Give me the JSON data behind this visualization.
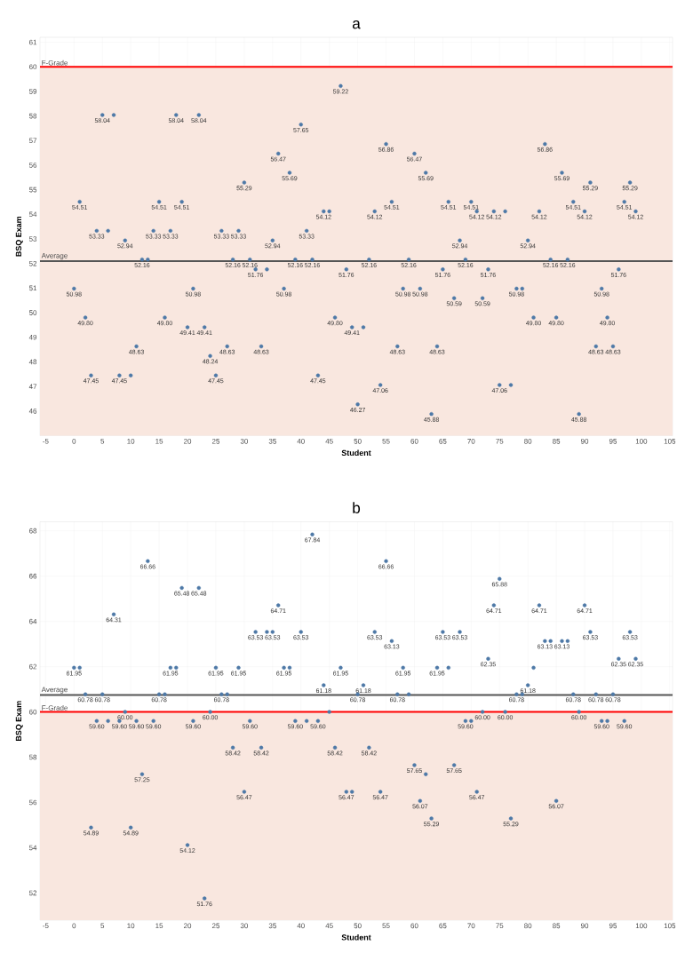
{
  "chart_data": [
    {
      "type": "scatter",
      "title": "a",
      "xlabel": "Student",
      "ylabel": "BSQ Exam",
      "color": "#4e79a7",
      "marker": "circle",
      "grid": true,
      "xlim": [
        -6,
        105.5
      ],
      "xticks": [
        -5,
        0,
        5,
        10,
        15,
        20,
        25,
        30,
        35,
        40,
        45,
        50,
        55,
        60,
        65,
        70,
        75,
        80,
        85,
        90,
        95,
        100,
        105
      ],
      "ylim": [
        45,
        61.2
      ],
      "yticks": [
        46,
        47,
        48,
        49,
        50,
        51,
        52,
        53,
        54,
        55,
        56,
        57,
        58,
        59,
        60,
        61
      ],
      "x": [
        0,
        1,
        2,
        3,
        4,
        5,
        6,
        7,
        8,
        9,
        10,
        11,
        12,
        13,
        14,
        15,
        16,
        17,
        18,
        19,
        20,
        21,
        22,
        23,
        24,
        25,
        26,
        27,
        28,
        29,
        30,
        31,
        32,
        33,
        34,
        35,
        36,
        37,
        38,
        39,
        40,
        41,
        42,
        43,
        44,
        45,
        46,
        47,
        48,
        49,
        50,
        51,
        52,
        53,
        54,
        55,
        56,
        57,
        58,
        59,
        60,
        61,
        62,
        63,
        64,
        65,
        66,
        67,
        68,
        69,
        70,
        71,
        72,
        73,
        74,
        75,
        76,
        77,
        78,
        79,
        80,
        81,
        82,
        83,
        84,
        85,
        86,
        87,
        88,
        89,
        90,
        91,
        92,
        93,
        94,
        95,
        96,
        97,
        98,
        99
      ],
      "values": [
        50.98,
        54.51,
        49.8,
        47.45,
        53.33,
        58.04,
        53.33,
        58.04,
        47.45,
        52.94,
        47.45,
        48.63,
        52.16,
        52.16,
        53.33,
        54.51,
        49.8,
        53.33,
        58.04,
        54.51,
        49.41,
        50.98,
        58.04,
        49.41,
        48.24,
        47.45,
        53.33,
        48.63,
        52.16,
        53.33,
        55.29,
        52.16,
        51.76,
        48.63,
        51.76,
        52.94,
        56.47,
        50.98,
        55.69,
        52.16,
        57.65,
        53.33,
        52.16,
        47.45,
        54.12,
        54.12,
        49.8,
        59.22,
        51.76,
        49.41,
        46.27,
        49.41,
        52.16,
        54.12,
        47.06,
        56.86,
        54.51,
        48.63,
        50.98,
        52.16,
        56.47,
        50.98,
        55.69,
        45.88,
        48.63,
        51.76,
        54.51,
        50.59,
        52.94,
        52.16,
        54.51,
        54.12,
        50.59,
        51.76,
        54.12,
        47.06,
        54.12,
        47.06,
        50.98,
        50.98,
        52.94,
        49.8,
        54.12,
        56.86,
        52.16,
        49.8,
        55.69,
        52.16,
        54.51,
        45.88,
        54.12,
        55.29,
        48.63,
        50.98,
        49.8,
        48.63,
        51.76,
        54.51,
        55.29,
        54.12
      ],
      "value_labels": [
        "50.98",
        "54.51",
        "49.80",
        "47.45",
        "53.33",
        "58.04",
        null,
        null,
        "47.45",
        "52.94",
        null,
        "48.63",
        "52.16",
        null,
        "53.33",
        "54.51",
        "49.80",
        "53.33",
        "58.04",
        "54.51",
        "49.41",
        "50.98",
        "58.04",
        "49.41",
        "48.24",
        "47.45",
        "53.33",
        "48.63",
        "52.16",
        "53.33",
        "55.29",
        "52.16",
        "51.76",
        "48.63",
        null,
        "52.94",
        "56.47",
        "50.98",
        "55.69",
        "52.16",
        "57.65",
        "53.33",
        "52.16",
        "47.45",
        "54.12",
        null,
        "49.80",
        "59.22",
        "51.76",
        "49.41",
        "46.27",
        null,
        "52.16",
        "54.12",
        "47.06",
        "56.86",
        "54.51",
        "48.63",
        "50.98",
        "52.16",
        "56.47",
        "50.98",
        "55.69",
        "45.88",
        "48.63",
        "51.76",
        "54.51",
        "50.59",
        "52.94",
        "52.16",
        "54.51",
        "54.12",
        "50.59",
        "51.76",
        "54.12",
        "47.06",
        null,
        null,
        "50.98",
        null,
        "52.94",
        "49.80",
        "54.12",
        "56.86",
        "52.16",
        "49.80",
        "55.69",
        "52.16",
        "54.51",
        "45.88",
        "54.12",
        "55.29",
        "48.63",
        "50.98",
        "49.80",
        "48.63",
        "51.76",
        "54.51",
        "55.29",
        "54.12"
      ],
      "ref_lines": [
        {
          "axis": "y",
          "value": 60,
          "label": "F-Grade",
          "color": "#ff0000"
        },
        {
          "axis": "y",
          "value": 52.1,
          "label": "Average",
          "color": "#555555"
        }
      ],
      "bands": [
        {
          "axis": "y",
          "from": 45,
          "to": 60,
          "color": "#f9e7df"
        }
      ]
    },
    {
      "type": "scatter",
      "title": "b",
      "xlabel": "Student",
      "ylabel": "BSQ Exam",
      "color": "#4e79a7",
      "marker": "circle",
      "grid": true,
      "xlim": [
        -6,
        105.5
      ],
      "xticks": [
        -5,
        0,
        5,
        10,
        15,
        20,
        25,
        30,
        35,
        40,
        45,
        50,
        55,
        60,
        65,
        70,
        75,
        80,
        85,
        90,
        95,
        100,
        105
      ],
      "ylim": [
        50.8,
        68.4
      ],
      "yticks": [
        52,
        54,
        56,
        58,
        60,
        62,
        64,
        66,
        68
      ],
      "x": [
        0,
        1,
        2,
        3,
        4,
        5,
        6,
        7,
        8,
        9,
        10,
        11,
        12,
        13,
        14,
        15,
        16,
        17,
        18,
        19,
        20,
        21,
        22,
        23,
        24,
        25,
        26,
        27,
        28,
        29,
        30,
        31,
        32,
        33,
        34,
        35,
        36,
        37,
        38,
        39,
        40,
        41,
        42,
        43,
        44,
        45,
        46,
        47,
        48,
        49,
        50,
        51,
        52,
        53,
        54,
        55,
        56,
        57,
        58,
        59,
        60,
        61,
        62,
        63,
        64,
        65,
        66,
        67,
        68,
        69,
        70,
        71,
        72,
        73,
        74,
        75,
        76,
        77,
        78,
        79,
        80,
        81,
        82,
        83,
        84,
        85,
        86,
        87,
        88,
        89,
        90,
        91,
        92,
        93,
        94,
        95,
        96,
        97,
        98,
        99
      ],
      "values": [
        61.95,
        61.95,
        60.78,
        54.89,
        59.6,
        60.78,
        59.6,
        64.31,
        59.6,
        60.0,
        54.89,
        59.6,
        57.25,
        66.66,
        59.6,
        60.78,
        60.78,
        61.95,
        61.95,
        65.48,
        54.12,
        59.6,
        65.48,
        51.76,
        60.0,
        61.95,
        60.78,
        60.78,
        58.42,
        61.95,
        56.47,
        59.6,
        63.53,
        58.42,
        63.53,
        63.53,
        64.71,
        61.95,
        61.95,
        59.6,
        63.53,
        59.6,
        67.84,
        59.6,
        61.18,
        60.0,
        58.42,
        61.95,
        56.47,
        56.47,
        60.78,
        61.18,
        58.42,
        63.53,
        56.47,
        66.66,
        63.13,
        60.78,
        61.95,
        60.78,
        57.65,
        56.07,
        57.25,
        55.29,
        61.95,
        63.53,
        61.95,
        57.65,
        63.53,
        59.6,
        59.6,
        56.47,
        60.0,
        62.35,
        64.71,
        65.88,
        60.0,
        55.29,
        60.78,
        60.78,
        61.18,
        61.95,
        64.71,
        63.13,
        63.13,
        56.07,
        63.13,
        63.13,
        60.78,
        60.0,
        64.71,
        63.53,
        60.78,
        59.6,
        59.6,
        60.78,
        62.35,
        59.6,
        63.53,
        62.35
      ],
      "value_labels": [
        "61.95",
        null,
        "60.78",
        "54.89",
        "59.60",
        "60.78",
        null,
        "64.31",
        "59.60",
        "60.00",
        "54.89",
        "59.60",
        "57.25",
        "66.66",
        "59.60",
        "60.78",
        null,
        "61.95",
        null,
        "65.48",
        "54.12",
        "59.60",
        "65.48",
        "51.76",
        "60.00",
        "61.95",
        "60.78",
        null,
        "58.42",
        "61.95",
        "56.47",
        "59.60",
        "63.53",
        "58.42",
        null,
        "63.53",
        "64.71",
        "61.95",
        null,
        "59.60",
        "63.53",
        null,
        "67.84",
        "59.60",
        "61.18",
        null,
        "58.42",
        "61.95",
        "56.47",
        null,
        "60.78",
        "61.18",
        "58.42",
        "63.53",
        "56.47",
        "66.66",
        "63.13",
        "60.78",
        "61.95",
        null,
        "57.65",
        "56.07",
        null,
        "55.29",
        "61.95",
        "63.53",
        null,
        "57.65",
        "63.53",
        "59.60",
        null,
        "56.47",
        "60.00",
        "62.35",
        "64.71",
        "65.88",
        "60.00",
        "55.29",
        "60.78",
        null,
        "61.18",
        null,
        "64.71",
        "63.13",
        null,
        "56.07",
        "63.13",
        null,
        "60.78",
        "60.00",
        "64.71",
        "63.53",
        "60.78",
        "59.60",
        null,
        "60.78",
        "62.35",
        "59.60",
        "63.53",
        "62.35"
      ],
      "ref_lines": [
        {
          "axis": "y",
          "value": 60,
          "label": "F-Grade",
          "color": "#ff0000"
        },
        {
          "axis": "y",
          "value": 60.75,
          "label": "Average",
          "color": "#555555"
        }
      ],
      "bands": [
        {
          "axis": "y",
          "from": 50.8,
          "to": 60,
          "color": "#f9e7df"
        }
      ]
    }
  ]
}
